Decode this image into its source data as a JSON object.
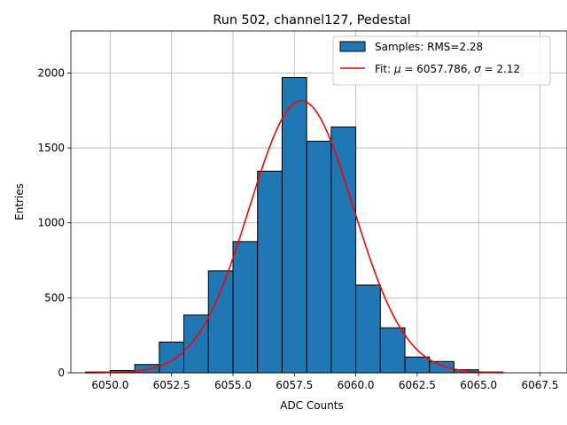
{
  "chart_data": {
    "type": "bar",
    "title": "Run 502, channel127, Pedestal",
    "xlabel": "ADC Counts",
    "ylabel": "Entries",
    "xlim": [
      6048.4,
      6068.6
    ],
    "ylim": [
      0,
      2280
    ],
    "xticks": [
      6050.0,
      6052.5,
      6055.0,
      6057.5,
      6060.0,
      6062.5,
      6065.0,
      6067.5
    ],
    "xtick_labels": [
      "6050.0",
      "6052.5",
      "6055.0",
      "6057.5",
      "6060.0",
      "6062.5",
      "6065.0",
      "6067.5"
    ],
    "yticks": [
      0,
      500,
      1000,
      1500,
      2000
    ],
    "ytick_labels": [
      "0",
      "500",
      "1000",
      "1500",
      "2000"
    ],
    "grid": true,
    "legend_position": "top-right",
    "histogram": {
      "name": "Samples: RMS=2.28",
      "color": "#1f77b4",
      "bin_edges": [
        6049,
        6050,
        6051,
        6052,
        6053,
        6054,
        6055,
        6056,
        6057,
        6058,
        6059,
        6060,
        6061,
        6062,
        6063,
        6064,
        6065,
        6066
      ],
      "counts": [
        5,
        15,
        55,
        205,
        385,
        680,
        875,
        1345,
        1970,
        1545,
        1640,
        585,
        300,
        105,
        75,
        20,
        5
      ]
    },
    "fit": {
      "name_prefix": "Fit: ",
      "name_mu": "μ",
      "name_mid": " = 6057.786, ",
      "name_sigma": "σ",
      "name_suffix": " = 2.12",
      "color": "#ff0000",
      "type": "gaussian",
      "mu": 6057.786,
      "sigma": 2.12,
      "amplitude": 1815,
      "x_range": [
        6049,
        6066
      ]
    }
  }
}
